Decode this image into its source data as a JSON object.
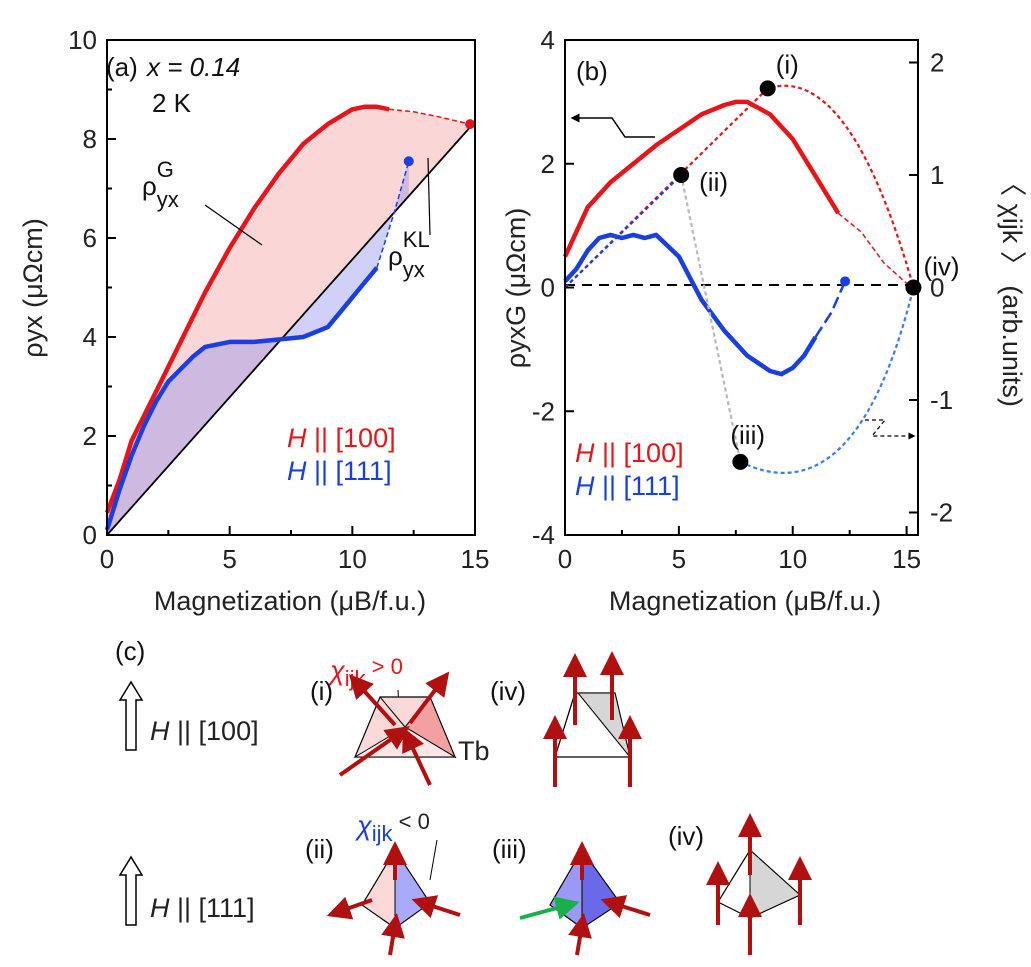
{
  "chart_data": [
    {
      "panel": "(a)",
      "type": "line",
      "annotations": {
        "x_label": "x = 0.14",
        "temp": "2 K",
        "rho_g": "ρyxG",
        "rho_kl": "ρyxKL"
      },
      "xlabel": "Magnetization (μB/f.u.)",
      "ylabel": "ρyx (μΩcm)",
      "xlim": [
        0,
        15
      ],
      "ylim": [
        0,
        10
      ],
      "x_ticks": [
        "0",
        "5",
        "10",
        "15"
      ],
      "y_ticks": [
        "0",
        "2",
        "4",
        "6",
        "8",
        "10"
      ],
      "series": [
        {
          "name": "H || [100]",
          "color": "#e8141a",
          "x": [
            0,
            0.5,
            1,
            2,
            3,
            4,
            5,
            6,
            7,
            8,
            9,
            10,
            10.5,
            11,
            11.5
          ],
          "y": [
            0.45,
            1.1,
            1.9,
            2.9,
            3.9,
            4.9,
            5.8,
            6.6,
            7.3,
            7.9,
            8.3,
            8.6,
            8.65,
            8.65,
            8.6
          ],
          "extrap_x": [
            11.5,
            12.5,
            13.5,
            14.8
          ],
          "extrap_y": [
            8.6,
            8.55,
            8.45,
            8.3
          ]
        },
        {
          "name": "H || [111]",
          "color": "#1a3fe0",
          "x": [
            0,
            0.5,
            1,
            1.5,
            2,
            2.5,
            3,
            3.5,
            4,
            5,
            6,
            7,
            8,
            9,
            9.5,
            10,
            10.5,
            11
          ],
          "y": [
            0.1,
            0.9,
            1.6,
            2.2,
            2.7,
            3.1,
            3.35,
            3.6,
            3.8,
            3.9,
            3.9,
            3.95,
            4.0,
            4.2,
            4.5,
            4.8,
            5.1,
            5.4
          ],
          "extrap_x": [
            11,
            11.7,
            12.3
          ],
          "extrap_y": [
            5.4,
            6.5,
            7.55
          ]
        },
        {
          "name": "ρyxKL",
          "color": "#000000",
          "x": [
            0,
            15
          ],
          "y": [
            0,
            8.35
          ]
        }
      ],
      "legend": [
        "H || [100]",
        "H || [111]"
      ]
    },
    {
      "panel": "(b)",
      "type": "line",
      "xlabel": "Magnetization (μB/f.u.)",
      "ylabel": "ρyxG (μΩcm)",
      "y2label": "〈 χijk 〉 (arb.units)",
      "xlim": [
        0,
        15.5
      ],
      "ylim": [
        -4,
        4
      ],
      "y2lim": [
        -2.2,
        2.2
      ],
      "x_ticks": [
        "0",
        "5",
        "10",
        "15"
      ],
      "y_ticks": [
        "-4",
        "-2",
        "0",
        "2",
        "4"
      ],
      "y2_ticks": [
        "-2",
        "-1",
        "0",
        "1",
        "2"
      ],
      "series": [
        {
          "name": "H || [100]",
          "color": "#e8141a",
          "x": [
            0,
            0.5,
            1,
            2,
            3,
            4,
            5,
            6,
            7,
            7.5,
            8,
            9,
            10,
            11,
            11.5,
            12
          ],
          "y": [
            0.5,
            0.9,
            1.3,
            1.7,
            2.0,
            2.3,
            2.55,
            2.8,
            2.95,
            3.0,
            3.0,
            2.8,
            2.4,
            1.8,
            1.5,
            1.2
          ],
          "extrap_x": [
            12,
            13,
            14,
            15.2
          ],
          "extrap_y": [
            1.2,
            0.9,
            0.4,
            0
          ]
        },
        {
          "name": "H || [111]",
          "color": "#1a3fe0",
          "x": [
            0,
            0.5,
            1,
            1.5,
            2,
            2.5,
            3,
            3.5,
            4,
            5,
            6,
            7,
            8,
            9,
            9.5,
            10,
            10.5,
            11
          ],
          "y": [
            0.1,
            0.3,
            0.6,
            0.8,
            0.85,
            0.8,
            0.85,
            0.8,
            0.85,
            0.5,
            -0.2,
            -0.7,
            -1.1,
            -1.35,
            -1.4,
            -1.3,
            -1.1,
            -0.8
          ],
          "extrap_x": [
            11,
            11.7,
            12.3
          ],
          "extrap_y": [
            -0.8,
            -0.4,
            0.1
          ]
        }
      ],
      "chi_points": [
        {
          "label": "(i)",
          "x": 8.9,
          "y2": 1.77
        },
        {
          "label": "(ii)",
          "x": 5.1,
          "y2": 1.0
        },
        {
          "label": "(iii)",
          "x": 7.7,
          "y2": -1.55
        },
        {
          "label": "(iv)",
          "x": 15.3,
          "y2": 0
        }
      ],
      "legend": [
        "H || [100]",
        "H || [111]"
      ]
    }
  ],
  "panel_c": {
    "label": "(c)",
    "row1_field": "H || [100]",
    "row2_field": "H || [111]",
    "chi_pos": "χijk > 0",
    "chi_neg": "χijk < 0",
    "tb": "Tb",
    "tiles": [
      "(i)",
      "(iv)",
      "(ii)",
      "(iii)",
      "(iv)"
    ]
  }
}
